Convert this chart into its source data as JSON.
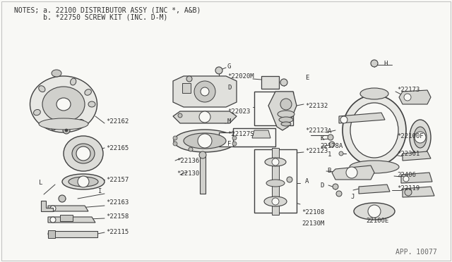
{
  "bg": "#f8f8f5",
  "lc": "#404040",
  "tc": "#303030",
  "notes_line1": "NOTES; a. 22100 DISTRIBUTOR ASSY (INC *, A&B)",
  "notes_line2": "       b. *22750 SCREW KIT (INC. D-M)",
  "watermark": "APP. 10077",
  "figsize": [
    6.4,
    3.72
  ],
  "dpi": 100
}
